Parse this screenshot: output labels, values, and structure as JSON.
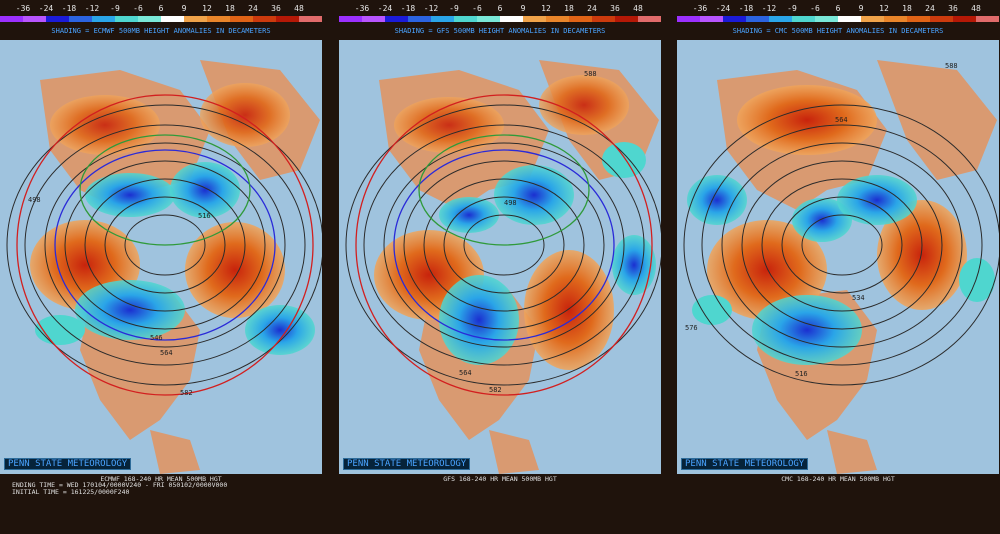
{
  "scale": {
    "labels": [
      "-36",
      "-24",
      "-18",
      "-12",
      "-9",
      "-6",
      "6",
      "9",
      "12",
      "18",
      "24",
      "36",
      "48"
    ],
    "colors": [
      "#9b30ff",
      "#b855ff",
      "#1b1bd8",
      "#2b63e0",
      "#2aa5e8",
      "#4fd6cf",
      "#7ae8d8",
      "#ffffff",
      "#f0a34a",
      "#e9852a",
      "#e06316",
      "#cc3a0d",
      "#b51806",
      "#e06b6b"
    ]
  },
  "palette": {
    "ocean": "#9fc3de",
    "land": "#d99a71",
    "contour": "#2b2b2b",
    "warm_strong": "#c8230c",
    "warm": "#e06a1c",
    "warm_light": "#f0a45a",
    "cool_light": "#4fd6cf",
    "cool": "#2aa5e8",
    "cool_strong": "#1b2fd0",
    "border_red": "#d21f1f",
    "border_blue": "#2a2ad8",
    "border_green": "#2f9a3a"
  },
  "panels": [
    {
      "caption": "SHADING = ECMWF 500MB HEIGHT ANOMALIES IN DECAMETERS",
      "credit": "PENN STATE METEOROLOGY",
      "subtitle": "ECMWF 168-240 HR MEAN 500MB HGT",
      "meta": [
        "ENDING TIME = WED 170104/0000V240 - FRI 050102/0000V000",
        "INITIAL TIME = 161225/0000F240"
      ],
      "contour_labels": [
        "498",
        "516",
        "546",
        "564",
        "582"
      ]
    },
    {
      "caption": "SHADING = GFS 500MB HEIGHT ANOMALIES IN DECAMETERS",
      "credit": "PENN STATE METEOROLOGY",
      "subtitle": "GFS 168-240 HR MEAN 500MB HGT",
      "meta": [],
      "contour_labels": [
        "588",
        "498",
        "564",
        "582"
      ]
    },
    {
      "caption": "SHADING = CMC 500MB HEIGHT ANOMALIES IN DECAMETERS",
      "credit": "PENN STATE METEOROLOGY",
      "subtitle": "CMC 168-240 HR MEAN 500MB HGT",
      "meta": [],
      "contour_labels": [
        "588",
        "564",
        "576",
        "534",
        "516"
      ]
    }
  ]
}
